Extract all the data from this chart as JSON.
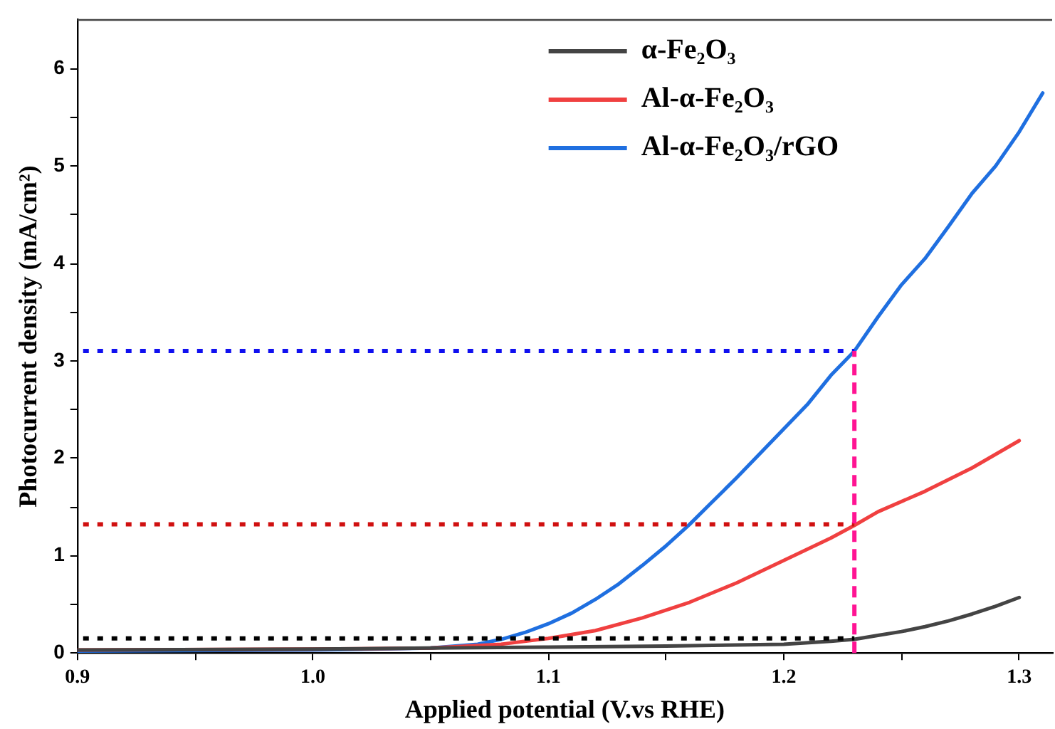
{
  "chart_data": {
    "type": "line",
    "xlabel": "Applied potential (V.vs RHE)",
    "ylabel": "Photocurrent density (mA/cm²)",
    "xlim": [
      0.9,
      1.314
    ],
    "xticks": [
      0.9,
      {
        "value": 0.95,
        "label": null
      },
      {
        "value": 1.0,
        "label": "1.0"
      },
      {
        "value": 1.05,
        "label": null
      },
      1.1,
      {
        "value": 1.15,
        "label": null
      },
      1.2,
      {
        "value": 1.25,
        "label": null
      },
      1.3
    ],
    "ylim": [
      0,
      6.5
    ],
    "yticks": [
      0,
      {
        "value": 0.5,
        "label": null
      },
      1,
      {
        "value": 1.5,
        "label": null
      },
      2,
      {
        "value": 2.5,
        "label": null
      },
      3,
      {
        "value": 3.5,
        "label": null
      },
      4,
      {
        "value": 4.5,
        "label": null
      },
      5,
      {
        "value": 5.5,
        "label": null
      },
      6
    ],
    "legend": "top right",
    "grid": false,
    "marker": "none",
    "line_style": "solid",
    "series": [
      {
        "name": "α-Fe₂O₃",
        "color": "#444444",
        "x": [
          0.9,
          1.0,
          1.05,
          1.1,
          1.15,
          1.2,
          1.22,
          1.23,
          1.24,
          1.25,
          1.26,
          1.27,
          1.28,
          1.29,
          1.3
        ],
        "values": [
          0.03,
          0.04,
          0.05,
          0.06,
          0.07,
          0.09,
          0.12,
          0.14,
          0.18,
          0.22,
          0.27,
          0.33,
          0.4,
          0.48,
          0.57
        ]
      },
      {
        "name": "Al-α-Fe₂O₃",
        "color": "#f04040",
        "x": [
          0.9,
          1.0,
          1.05,
          1.08,
          1.1,
          1.12,
          1.14,
          1.16,
          1.18,
          1.2,
          1.22,
          1.23,
          1.24,
          1.26,
          1.28,
          1.3
        ],
        "values": [
          0.03,
          0.04,
          0.05,
          0.09,
          0.15,
          0.23,
          0.36,
          0.52,
          0.72,
          0.95,
          1.18,
          1.31,
          1.45,
          1.66,
          1.9,
          2.18
        ]
      },
      {
        "name": "Al-α-Fe₂O₃/rGO",
        "color": "#1f6fe0",
        "x": [
          0.9,
          1.0,
          1.05,
          1.07,
          1.08,
          1.09,
          1.1,
          1.11,
          1.12,
          1.13,
          1.14,
          1.15,
          1.16,
          1.17,
          1.18,
          1.19,
          1.2,
          1.21,
          1.22,
          1.23,
          1.24,
          1.25,
          1.26,
          1.27,
          1.28,
          1.29,
          1.3,
          1.31
        ],
        "values": [
          0.02,
          0.03,
          0.05,
          0.09,
          0.14,
          0.21,
          0.3,
          0.41,
          0.55,
          0.71,
          0.9,
          1.1,
          1.32,
          1.56,
          1.8,
          2.05,
          2.3,
          2.55,
          2.85,
          3.1,
          3.45,
          3.78,
          4.05,
          4.38,
          4.72,
          5.0,
          5.35,
          5.75
        ]
      }
    ],
    "ref_lines": [
      {
        "axis": "y",
        "value": 3.1,
        "color": "#1010f0",
        "line_style": "dotted"
      },
      {
        "axis": "y",
        "value": 1.32,
        "color": "#d01010",
        "line_style": "dotted"
      },
      {
        "axis": "y",
        "value": 0.15,
        "color": "#000000",
        "line_style": "dotted"
      },
      {
        "axis": "x",
        "value": 1.23,
        "color": "#ff1493",
        "line_style": "dashed"
      }
    ]
  }
}
